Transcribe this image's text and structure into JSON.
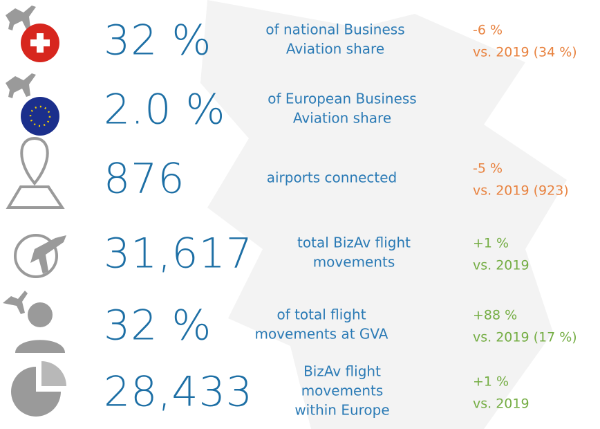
{
  "rows": [
    {
      "figure": "32 %",
      "description": [
        "of national Business",
        "Aviation share"
      ],
      "change": "-6 %",
      "comparison": "vs. 2019 (34 %)",
      "color": "#e8823f"
    },
    {
      "figure": "2.0 %",
      "description": [
        "of European Business",
        "Aviation share"
      ]
    },
    {
      "figure": "876",
      "description": [
        "airports connected"
      ],
      "change": "-5 %",
      "comparison": "vs.  2019 (923)",
      "color": "#e8823f"
    },
    {
      "figure": "31,617",
      "description": [
        "total BizAv flight",
        "movements"
      ],
      "change": "+1 %",
      "comparison": "vs. 2019",
      "color": "#74ad43"
    },
    {
      "figure": "32 %",
      "description": [
        "of total flight",
        "movements at GVA"
      ],
      "change": "+88 %",
      "comparison": "vs. 2019 (17 %)",
      "color": "#74ad43"
    },
    {
      "figure": "28,433",
      "description": [
        "BizAv flight",
        "movements",
        "within Europe"
      ],
      "change": "+1 %",
      "comparison": "vs. 2019",
      "color": "#74ad43"
    }
  ]
}
